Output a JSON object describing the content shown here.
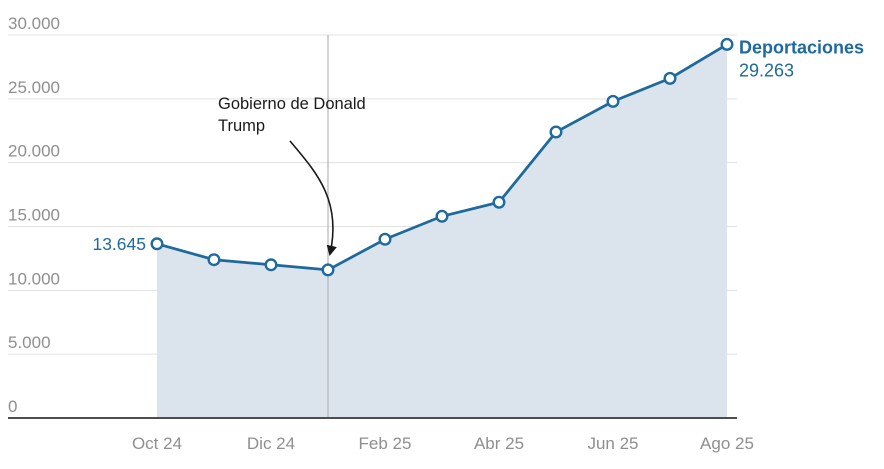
{
  "chart_data": {
    "type": "area",
    "title": "",
    "x": [
      "Oct 24",
      "Nov 24",
      "Dic 24",
      "Ene 25",
      "Feb 25",
      "Mar 25",
      "Abr 25",
      "May 25",
      "Jun 25",
      "Jul 25",
      "Ago 25"
    ],
    "series": [
      {
        "name": "Deportaciones",
        "values": [
          13645,
          12400,
          12000,
          11600,
          14000,
          15800,
          16900,
          22400,
          24800,
          26600,
          29263
        ]
      }
    ],
    "visible_x_tick_labels": [
      "Oct 24",
      "Dic 24",
      "Feb 25",
      "Abr 25",
      "Jun 25",
      "Ago 25"
    ],
    "y_ticks": [
      0,
      5000,
      10000,
      15000,
      20000,
      25000,
      30000
    ],
    "y_tick_labels": [
      "0",
      "5.000",
      "10.000",
      "15.000",
      "20.000",
      "25.000",
      "30.000"
    ],
    "ylim": [
      0,
      30000
    ],
    "grid": true,
    "legend_position": "end-of-line",
    "annotations": {
      "first_point_value_label": "13.645",
      "end_series_label": "Deportaciones",
      "end_value_label": "29.263",
      "event": {
        "label_lines": [
          "Gobierno de Donald",
          "Trump"
        ],
        "x": "Ene 25"
      }
    },
    "colors": {
      "line": "#1e6a9c",
      "area": "#dbe3ed",
      "marker_fill": "#ffffff",
      "label_blue": "#1e6a9c",
      "axis_text": "#8f8f8f",
      "gridline": "#e2e2e2",
      "axis_line": "#4d4d4d",
      "event_line": "#b3b3b3",
      "annotation_text": "#1a1a1a"
    }
  }
}
